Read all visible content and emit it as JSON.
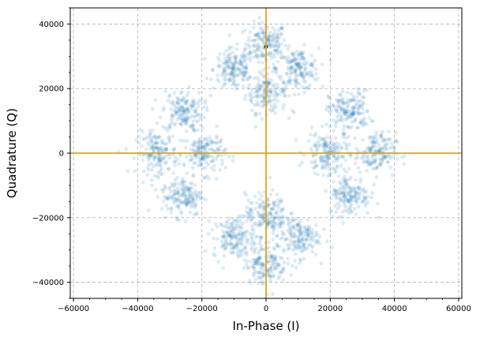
{
  "chart_data": {
    "type": "scatter",
    "title": "",
    "xlabel": "In-Phase (I)",
    "ylabel": "Quadrature (Q)",
    "xlim": [
      -61000,
      61000
    ],
    "ylim": [
      -45000,
      45000
    ],
    "xticks": [
      -60000,
      -40000,
      -20000,
      0,
      20000,
      40000,
      60000
    ],
    "yticks": [
      -40000,
      -20000,
      0,
      20000,
      40000
    ],
    "xtick_labels": [
      "−60000",
      "−40000",
      "−20000",
      "0",
      "20000",
      "40000",
      "60000"
    ],
    "ytick_labels": [
      "−40000",
      "−20000",
      "0",
      "20000",
      "40000"
    ],
    "grid": true,
    "grid_style": "dashed",
    "reference_lines": [
      {
        "orientation": "horizontal",
        "y": 0,
        "color": "#e6a21a"
      },
      {
        "orientation": "vertical",
        "x": 0,
        "color": "#e6a21a"
      }
    ],
    "point_color": "#1f77b4",
    "point_alpha": 0.15,
    "series": [
      {
        "values_note": "",
        "clusters": [
          {
            "x": 0,
            "y": 34000
          },
          {
            "x": 0,
            "y": 19000
          },
          {
            "x": -10000,
            "y": 26000
          },
          {
            "x": 10000,
            "y": 26000
          },
          {
            "x": -26000,
            "y": 13000
          },
          {
            "x": 26000,
            "y": 13000
          },
          {
            "x": -34000,
            "y": 0
          },
          {
            "x": -19000,
            "y": 0
          },
          {
            "x": 19000,
            "y": 0
          },
          {
            "x": 34000,
            "y": 0
          },
          {
            "x": -26000,
            "y": -13000
          },
          {
            "x": 26000,
            "y": -13000
          },
          {
            "x": -10000,
            "y": -26000
          },
          {
            "x": 10000,
            "y": -26000
          },
          {
            "x": 0,
            "y": -19000
          },
          {
            "x": 0,
            "y": -34000
          }
        ],
        "points_per_cluster": 160,
        "cluster_spread": 3200
      }
    ],
    "highlight_point": {
      "x": 0,
      "y": 33000
    }
  }
}
